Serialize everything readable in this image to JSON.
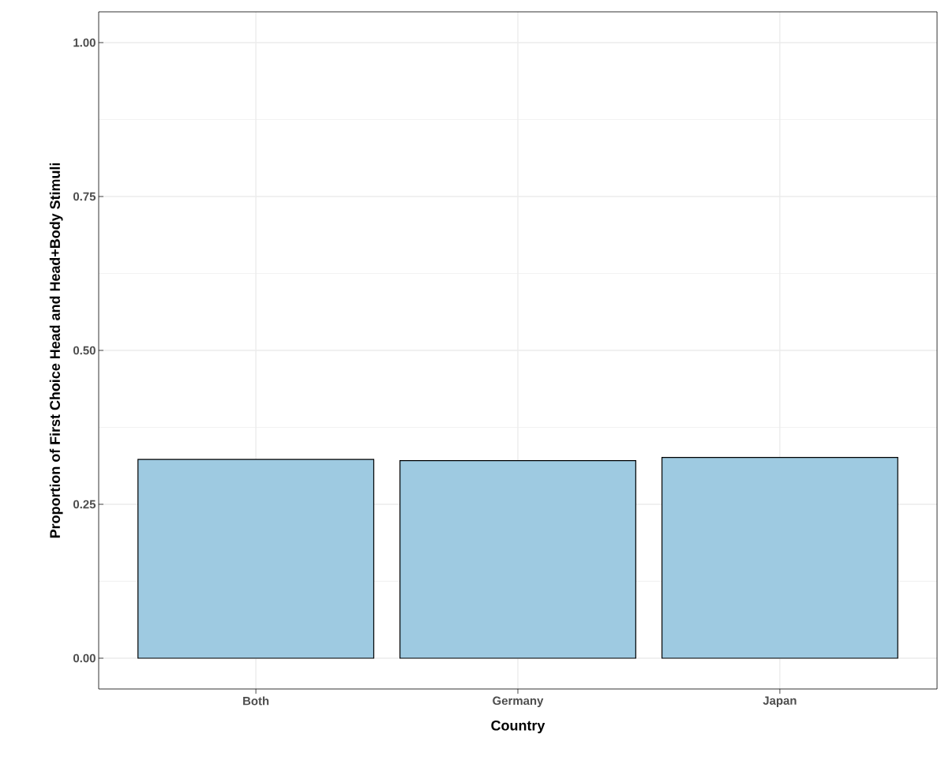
{
  "chart_data": {
    "type": "bar",
    "xlabel": "Country",
    "ylabel": "Proportion of First Choice Head and Head+Body Stimuli",
    "categories": [
      "Both",
      "Germany",
      "Japan"
    ],
    "values": [
      0.323,
      0.321,
      0.326
    ],
    "color": "#9ecae1",
    "ylim": [
      -0.05,
      1.05
    ],
    "yticks": [
      {
        "value": 0,
        "label": "0.00"
      },
      {
        "value": 0.25,
        "label": "0.25"
      },
      {
        "value": 0.5,
        "label": "0.50"
      },
      {
        "value": 0.75,
        "label": "0.75"
      },
      {
        "value": 1,
        "label": "1.00"
      }
    ],
    "grid": true
  }
}
